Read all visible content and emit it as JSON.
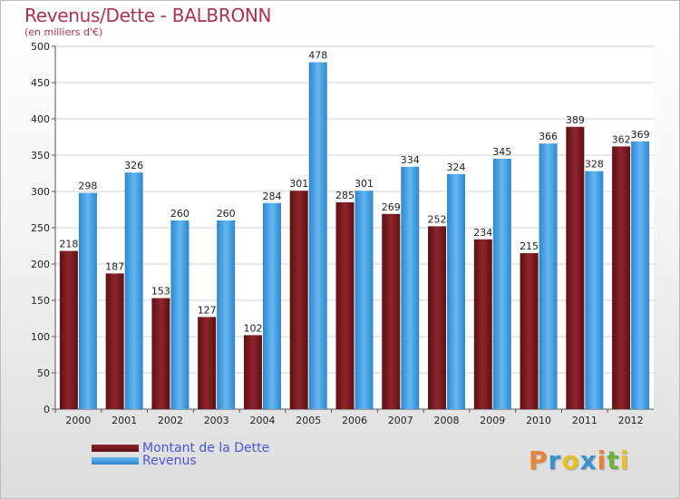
{
  "title": "Revenus/Dette - BALBRONN",
  "subtitle": "(en milliers d'€)",
  "legend": {
    "dette_label": "Montant de la Dette",
    "revenus_label": "Revenus"
  },
  "logo": {
    "letters": [
      "P",
      "r",
      "o",
      "x",
      "i",
      "t",
      "i"
    ]
  },
  "colors": {
    "dette": "#7a1a1f",
    "dette_light": "#9a2a30",
    "revenus": "#3d9be0",
    "revenus_light": "#62b6f2",
    "title": "#b03050",
    "legend_text": "#4a56d8",
    "logo": [
      "#e8833a",
      "#3a90d0",
      "#e8c12a",
      "#3a90d0",
      "#e8833a",
      "#6db33f",
      "#e8c12a"
    ]
  },
  "chart_data": {
    "type": "bar",
    "categories": [
      "2000",
      "2001",
      "2002",
      "2003",
      "2004",
      "2005",
      "2006",
      "2007",
      "2008",
      "2009",
      "2010",
      "2011",
      "2012"
    ],
    "series": [
      {
        "name": "Montant de la Dette",
        "values": [
          218,
          187,
          153,
          127,
          102,
          301,
          285,
          269,
          252,
          234,
          215,
          389,
          362
        ]
      },
      {
        "name": "Revenus",
        "values": [
          298,
          326,
          260,
          260,
          284,
          478,
          301,
          334,
          324,
          345,
          366,
          328,
          369
        ]
      }
    ],
    "ylim": [
      0,
      500
    ],
    "yticks": [
      0,
      50,
      100,
      150,
      200,
      250,
      300,
      350,
      400,
      450,
      500
    ],
    "grid": true,
    "legend_position": "bottom-left"
  }
}
